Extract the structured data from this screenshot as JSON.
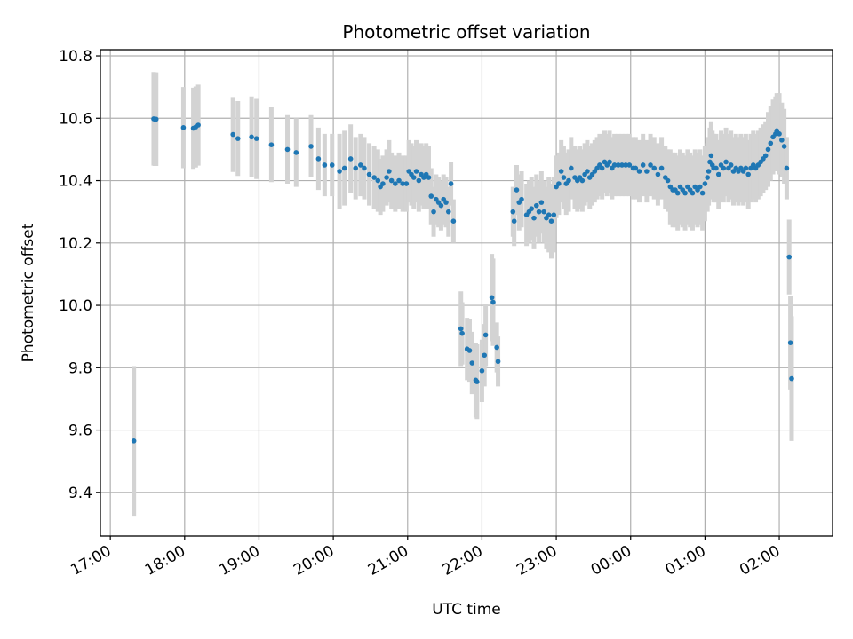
{
  "chart_data": {
    "type": "scatter",
    "title": "Photometric offset variation",
    "xlabel": "UTC time",
    "ylabel": "Photometric offset",
    "grid": true,
    "x_is_time": true,
    "x_tick_labels": [
      "17:00",
      "18:00",
      "19:00",
      "20:00",
      "21:00",
      "22:00",
      "23:00",
      "00:00",
      "01:00",
      "02:00"
    ],
    "y_tick_labels": [
      "9.4",
      "9.6",
      "9.8",
      "10.0",
      "10.2",
      "10.4",
      "10.6",
      "10.8"
    ],
    "xlim": [
      "16:52",
      "02:43"
    ],
    "ylim": [
      9.26,
      10.82
    ],
    "colors": {
      "points": "#1f77b4",
      "errorbars": "#d3d3d3",
      "grid": "#b0b0b0"
    },
    "points": [
      {
        "t": "17:19",
        "y": 9.565,
        "err": 0.24
      },
      {
        "t": "17:35",
        "y": 10.598,
        "err": 0.15
      },
      {
        "t": "17:36",
        "y": 10.597,
        "err": 0.15
      },
      {
        "t": "17:37",
        "y": 10.597,
        "err": 0.15
      },
      {
        "t": "17:59",
        "y": 10.57,
        "err": 0.13
      },
      {
        "t": "18:07",
        "y": 10.568,
        "err": 0.13
      },
      {
        "t": "18:09",
        "y": 10.572,
        "err": 0.13
      },
      {
        "t": "18:11",
        "y": 10.578,
        "err": 0.13
      },
      {
        "t": "18:39",
        "y": 10.548,
        "err": 0.12
      },
      {
        "t": "18:43",
        "y": 10.535,
        "err": 0.12
      },
      {
        "t": "18:54",
        "y": 10.54,
        "err": 0.13
      },
      {
        "t": "18:58",
        "y": 10.535,
        "err": 0.13
      },
      {
        "t": "19:10",
        "y": 10.515,
        "err": 0.12
      },
      {
        "t": "19:23",
        "y": 10.5,
        "err": 0.11
      },
      {
        "t": "19:30",
        "y": 10.49,
        "err": 0.11
      },
      {
        "t": "19:42",
        "y": 10.51,
        "err": 0.1
      },
      {
        "t": "19:48",
        "y": 10.47,
        "err": 0.1
      },
      {
        "t": "19:53",
        "y": 10.45,
        "err": 0.1
      },
      {
        "t": "19:59",
        "y": 10.45,
        "err": 0.1
      },
      {
        "t": "20:05",
        "y": 10.43,
        "err": 0.12
      },
      {
        "t": "20:09",
        "y": 10.44,
        "err": 0.12
      },
      {
        "t": "20:14",
        "y": 10.47,
        "err": 0.11
      },
      {
        "t": "20:18",
        "y": 10.44,
        "err": 0.1
      },
      {
        "t": "20:22",
        "y": 10.45,
        "err": 0.1
      },
      {
        "t": "20:25",
        "y": 10.44,
        "err": 0.1
      },
      {
        "t": "20:29",
        "y": 10.42,
        "err": 0.1
      },
      {
        "t": "20:33",
        "y": 10.41,
        "err": 0.1
      },
      {
        "t": "20:36",
        "y": 10.4,
        "err": 0.1
      },
      {
        "t": "20:38",
        "y": 10.38,
        "err": 0.09
      },
      {
        "t": "20:40",
        "y": 10.39,
        "err": 0.09
      },
      {
        "t": "20:43",
        "y": 10.41,
        "err": 0.09
      },
      {
        "t": "20:45",
        "y": 10.43,
        "err": 0.1
      },
      {
        "t": "20:47",
        "y": 10.4,
        "err": 0.09
      },
      {
        "t": "20:50",
        "y": 10.39,
        "err": 0.09
      },
      {
        "t": "20:53",
        "y": 10.4,
        "err": 0.09
      },
      {
        "t": "20:56",
        "y": 10.39,
        "err": 0.09
      },
      {
        "t": "20:59",
        "y": 10.39,
        "err": 0.09
      },
      {
        "t": "21:01",
        "y": 10.43,
        "err": 0.1
      },
      {
        "t": "21:03",
        "y": 10.42,
        "err": 0.1
      },
      {
        "t": "21:05",
        "y": 10.41,
        "err": 0.1
      },
      {
        "t": "21:07",
        "y": 10.43,
        "err": 0.1
      },
      {
        "t": "21:09",
        "y": 10.4,
        "err": 0.1
      },
      {
        "t": "21:11",
        "y": 10.42,
        "err": 0.1
      },
      {
        "t": "21:13",
        "y": 10.41,
        "err": 0.1
      },
      {
        "t": "21:15",
        "y": 10.42,
        "err": 0.1
      },
      {
        "t": "21:17",
        "y": 10.41,
        "err": 0.1
      },
      {
        "t": "21:19",
        "y": 10.35,
        "err": 0.09
      },
      {
        "t": "21:21",
        "y": 10.3,
        "err": 0.08
      },
      {
        "t": "21:23",
        "y": 10.34,
        "err": 0.08
      },
      {
        "t": "21:25",
        "y": 10.33,
        "err": 0.08
      },
      {
        "t": "21:27",
        "y": 10.32,
        "err": 0.08
      },
      {
        "t": "21:29",
        "y": 10.34,
        "err": 0.08
      },
      {
        "t": "21:31",
        "y": 10.33,
        "err": 0.08
      },
      {
        "t": "21:33",
        "y": 10.3,
        "err": 0.08
      },
      {
        "t": "21:35",
        "y": 10.39,
        "err": 0.07
      },
      {
        "t": "21:37",
        "y": 10.27,
        "err": 0.07
      },
      {
        "t": "21:43",
        "y": 9.925,
        "err": 0.12
      },
      {
        "t": "21:44",
        "y": 9.91,
        "err": 0.1
      },
      {
        "t": "21:48",
        "y": 9.86,
        "err": 0.1
      },
      {
        "t": "21:50",
        "y": 9.855,
        "err": 0.1
      },
      {
        "t": "21:52",
        "y": 9.815,
        "err": 0.1
      },
      {
        "t": "21:55",
        "y": 9.76,
        "err": 0.12
      },
      {
        "t": "21:56",
        "y": 9.755,
        "err": 0.12
      },
      {
        "t": "22:00",
        "y": 9.79,
        "err": 0.1
      },
      {
        "t": "22:02",
        "y": 9.84,
        "err": 0.1
      },
      {
        "t": "22:03",
        "y": 9.905,
        "err": 0.1
      },
      {
        "t": "22:08",
        "y": 10.025,
        "err": 0.14
      },
      {
        "t": "22:09",
        "y": 10.01,
        "err": 0.14
      },
      {
        "t": "22:12",
        "y": 9.865,
        "err": 0.08
      },
      {
        "t": "22:13",
        "y": 9.82,
        "err": 0.08
      },
      {
        "t": "22:25",
        "y": 10.3,
        "err": 0.08
      },
      {
        "t": "22:26",
        "y": 10.27,
        "err": 0.08
      },
      {
        "t": "22:28",
        "y": 10.37,
        "err": 0.08
      },
      {
        "t": "22:30",
        "y": 10.33,
        "err": 0.09
      },
      {
        "t": "22:32",
        "y": 10.34,
        "err": 0.09
      },
      {
        "t": "22:36",
        "y": 10.29,
        "err": 0.1
      },
      {
        "t": "22:38",
        "y": 10.3,
        "err": 0.1
      },
      {
        "t": "22:40",
        "y": 10.31,
        "err": 0.1
      },
      {
        "t": "22:42",
        "y": 10.28,
        "err": 0.1
      },
      {
        "t": "22:44",
        "y": 10.32,
        "err": 0.1
      },
      {
        "t": "22:46",
        "y": 10.3,
        "err": 0.1
      },
      {
        "t": "22:48",
        "y": 10.33,
        "err": 0.1
      },
      {
        "t": "22:50",
        "y": 10.3,
        "err": 0.1
      },
      {
        "t": "22:52",
        "y": 10.28,
        "err": 0.1
      },
      {
        "t": "22:54",
        "y": 10.29,
        "err": 0.12
      },
      {
        "t": "22:56",
        "y": 10.27,
        "err": 0.12
      },
      {
        "t": "22:58",
        "y": 10.29,
        "err": 0.12
      },
      {
        "t": "23:00",
        "y": 10.38,
        "err": 0.1
      },
      {
        "t": "23:02",
        "y": 10.39,
        "err": 0.1
      },
      {
        "t": "23:04",
        "y": 10.43,
        "err": 0.1
      },
      {
        "t": "23:06",
        "y": 10.41,
        "err": 0.1
      },
      {
        "t": "23:08",
        "y": 10.39,
        "err": 0.1
      },
      {
        "t": "23:10",
        "y": 10.4,
        "err": 0.1
      },
      {
        "t": "23:12",
        "y": 10.44,
        "err": 0.1
      },
      {
        "t": "23:15",
        "y": 10.41,
        "err": 0.1
      },
      {
        "t": "23:17",
        "y": 10.4,
        "err": 0.1
      },
      {
        "t": "23:19",
        "y": 10.41,
        "err": 0.1
      },
      {
        "t": "23:21",
        "y": 10.4,
        "err": 0.1
      },
      {
        "t": "23:23",
        "y": 10.42,
        "err": 0.1
      },
      {
        "t": "23:25",
        "y": 10.43,
        "err": 0.1
      },
      {
        "t": "23:27",
        "y": 10.41,
        "err": 0.1
      },
      {
        "t": "23:29",
        "y": 10.42,
        "err": 0.1
      },
      {
        "t": "23:31",
        "y": 10.43,
        "err": 0.1
      },
      {
        "t": "23:33",
        "y": 10.44,
        "err": 0.1
      },
      {
        "t": "23:35",
        "y": 10.45,
        "err": 0.1
      },
      {
        "t": "23:37",
        "y": 10.44,
        "err": 0.1
      },
      {
        "t": "23:39",
        "y": 10.46,
        "err": 0.1
      },
      {
        "t": "23:41",
        "y": 10.45,
        "err": 0.1
      },
      {
        "t": "23:43",
        "y": 10.46,
        "err": 0.1
      },
      {
        "t": "23:45",
        "y": 10.44,
        "err": 0.1
      },
      {
        "t": "23:47",
        "y": 10.45,
        "err": 0.1
      },
      {
        "t": "23:50",
        "y": 10.45,
        "err": 0.1
      },
      {
        "t": "23:53",
        "y": 10.45,
        "err": 0.1
      },
      {
        "t": "23:56",
        "y": 10.45,
        "err": 0.1
      },
      {
        "t": "23:59",
        "y": 10.45,
        "err": 0.1
      },
      {
        "t": "00:02",
        "y": 10.44,
        "err": 0.1
      },
      {
        "t": "00:04",
        "y": 10.44,
        "err": 0.1
      },
      {
        "t": "00:07",
        "y": 10.43,
        "err": 0.1
      },
      {
        "t": "00:10",
        "y": 10.45,
        "err": 0.1
      },
      {
        "t": "00:13",
        "y": 10.43,
        "err": 0.1
      },
      {
        "t": "00:16",
        "y": 10.45,
        "err": 0.1
      },
      {
        "t": "00:19",
        "y": 10.44,
        "err": 0.1
      },
      {
        "t": "00:22",
        "y": 10.42,
        "err": 0.1
      },
      {
        "t": "00:25",
        "y": 10.44,
        "err": 0.1
      },
      {
        "t": "00:28",
        "y": 10.41,
        "err": 0.1
      },
      {
        "t": "00:30",
        "y": 10.4,
        "err": 0.1
      },
      {
        "t": "00:32",
        "y": 10.38,
        "err": 0.12
      },
      {
        "t": "00:34",
        "y": 10.37,
        "err": 0.12
      },
      {
        "t": "00:36",
        "y": 10.37,
        "err": 0.12
      },
      {
        "t": "00:38",
        "y": 10.36,
        "err": 0.12
      },
      {
        "t": "00:40",
        "y": 10.38,
        "err": 0.12
      },
      {
        "t": "00:42",
        "y": 10.37,
        "err": 0.12
      },
      {
        "t": "00:44",
        "y": 10.36,
        "err": 0.12
      },
      {
        "t": "00:46",
        "y": 10.38,
        "err": 0.12
      },
      {
        "t": "00:48",
        "y": 10.37,
        "err": 0.12
      },
      {
        "t": "00:50",
        "y": 10.36,
        "err": 0.12
      },
      {
        "t": "00:52",
        "y": 10.38,
        "err": 0.12
      },
      {
        "t": "00:54",
        "y": 10.37,
        "err": 0.12
      },
      {
        "t": "00:56",
        "y": 10.38,
        "err": 0.12
      },
      {
        "t": "00:58",
        "y": 10.36,
        "err": 0.12
      },
      {
        "t": "01:00",
        "y": 10.39,
        "err": 0.12
      },
      {
        "t": "01:02",
        "y": 10.41,
        "err": 0.11
      },
      {
        "t": "01:03",
        "y": 10.43,
        "err": 0.11
      },
      {
        "t": "01:04",
        "y": 10.46,
        "err": 0.11
      },
      {
        "t": "01:05",
        "y": 10.48,
        "err": 0.11
      },
      {
        "t": "01:06",
        "y": 10.45,
        "err": 0.11
      },
      {
        "t": "01:07",
        "y": 10.44,
        "err": 0.11
      },
      {
        "t": "01:09",
        "y": 10.44,
        "err": 0.11
      },
      {
        "t": "01:11",
        "y": 10.42,
        "err": 0.11
      },
      {
        "t": "01:13",
        "y": 10.45,
        "err": 0.11
      },
      {
        "t": "01:15",
        "y": 10.44,
        "err": 0.11
      },
      {
        "t": "01:17",
        "y": 10.46,
        "err": 0.11
      },
      {
        "t": "01:19",
        "y": 10.44,
        "err": 0.11
      },
      {
        "t": "01:21",
        "y": 10.45,
        "err": 0.11
      },
      {
        "t": "01:23",
        "y": 10.43,
        "err": 0.11
      },
      {
        "t": "01:25",
        "y": 10.44,
        "err": 0.11
      },
      {
        "t": "01:27",
        "y": 10.43,
        "err": 0.11
      },
      {
        "t": "01:29",
        "y": 10.44,
        "err": 0.11
      },
      {
        "t": "01:31",
        "y": 10.43,
        "err": 0.11
      },
      {
        "t": "01:33",
        "y": 10.44,
        "err": 0.11
      },
      {
        "t": "01:35",
        "y": 10.42,
        "err": 0.11
      },
      {
        "t": "01:37",
        "y": 10.44,
        "err": 0.11
      },
      {
        "t": "01:39",
        "y": 10.45,
        "err": 0.11
      },
      {
        "t": "01:41",
        "y": 10.44,
        "err": 0.11
      },
      {
        "t": "01:43",
        "y": 10.45,
        "err": 0.11
      },
      {
        "t": "01:45",
        "y": 10.46,
        "err": 0.11
      },
      {
        "t": "01:47",
        "y": 10.47,
        "err": 0.11
      },
      {
        "t": "01:49",
        "y": 10.48,
        "err": 0.11
      },
      {
        "t": "01:51",
        "y": 10.5,
        "err": 0.12
      },
      {
        "t": "01:53",
        "y": 10.52,
        "err": 0.12
      },
      {
        "t": "01:55",
        "y": 10.54,
        "err": 0.12
      },
      {
        "t": "01:57",
        "y": 10.55,
        "err": 0.12
      },
      {
        "t": "01:58",
        "y": 10.56,
        "err": 0.12
      },
      {
        "t": "02:00",
        "y": 10.55,
        "err": 0.13
      },
      {
        "t": "02:02",
        "y": 10.53,
        "err": 0.12
      },
      {
        "t": "02:04",
        "y": 10.51,
        "err": 0.12
      },
      {
        "t": "02:06",
        "y": 10.44,
        "err": 0.1
      },
      {
        "t": "02:08",
        "y": 10.155,
        "err": 0.12
      },
      {
        "t": "02:09",
        "y": 9.88,
        "err": 0.15
      },
      {
        "t": "02:10",
        "y": 9.765,
        "err": 0.2
      }
    ]
  }
}
